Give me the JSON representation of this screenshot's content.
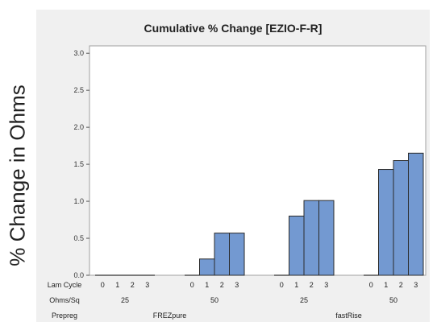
{
  "chart_data": {
    "type": "bar",
    "title": "Cumulative % Change [EZIO-F-R]",
    "ylabel": "% Change in Ohms",
    "ylim": [
      0,
      3.1
    ],
    "yticks": [
      0.0,
      0.5,
      1.0,
      1.5,
      2.0,
      2.5,
      3.0
    ],
    "ytick_labels": [
      "0.0",
      "0.5",
      "1.0",
      "1.5",
      "2.0",
      "2.5",
      "3.0"
    ],
    "grid": false,
    "bar_color": "#7399d1",
    "axis_row_labels": [
      "Lam Cycle",
      "Ohms/Sq",
      "Prepreg"
    ],
    "prepregs": [
      "FREZpure",
      "fastRise"
    ],
    "groups": [
      {
        "prepreg": "FREZpure",
        "ohms": "25",
        "cycles": [
          "0",
          "1",
          "2",
          "3"
        ],
        "values": [
          0,
          0,
          0,
          0
        ]
      },
      {
        "prepreg": "FREZpure",
        "ohms": "50",
        "cycles": [
          "0",
          "1",
          "2",
          "3"
        ],
        "values": [
          0,
          0.22,
          0.57,
          0.57
        ]
      },
      {
        "prepreg": "fastRise",
        "ohms": "25",
        "cycles": [
          "0",
          "1",
          "2",
          "3"
        ],
        "values": [
          0,
          0.8,
          1.01,
          1.01
        ]
      },
      {
        "prepreg": "fastRise",
        "ohms": "50",
        "cycles": [
          "0",
          "1",
          "2",
          "3"
        ],
        "values": [
          0,
          1.43,
          1.55,
          1.65
        ]
      }
    ]
  }
}
